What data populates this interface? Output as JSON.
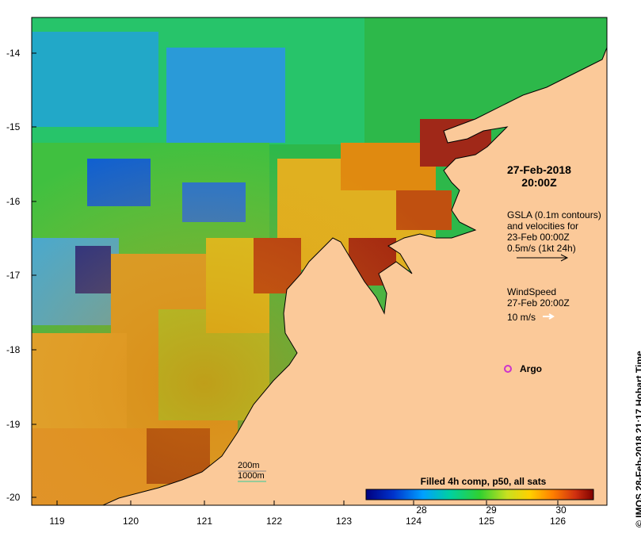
{
  "map": {
    "y_ticks": [
      "-14",
      "-15",
      "-16",
      "-17",
      "-18",
      "-19",
      "-20"
    ],
    "x_ticks": [
      "119",
      "120",
      "121",
      "122",
      "123",
      "124",
      "125",
      "126"
    ],
    "datetime_line1": "27-Feb-2018",
    "datetime_line2": "20:00Z",
    "gsla_line1": "GSLA (0.1m contours)",
    "gsla_line2": "and velocities for",
    "gsla_line3": "23-Feb 00:00Z",
    "gsla_line4": "0.5m/s (1kt 24h)",
    "wind_line1": "WindSpeed",
    "wind_line2": "27-Feb 20:00Z",
    "wind_scale": "10 m/s",
    "argo": "Argo",
    "colorbar_title": "Filled 4h comp, p50, all sats",
    "colorbar_ticks": [
      "28",
      "29",
      "30"
    ],
    "contour_200": "200m",
    "contour_1000": "1000m",
    "credit": "© IMOS 28-Feb-2018 21:17 Hobart Time",
    "colors": {
      "land": "#fbc999",
      "ocean_cool": "#1a7fd6",
      "ocean_warm": "#e8a020",
      "contour_200": "#888888",
      "contour_1000": "#33cc99",
      "argo": "#cc33cc"
    }
  }
}
